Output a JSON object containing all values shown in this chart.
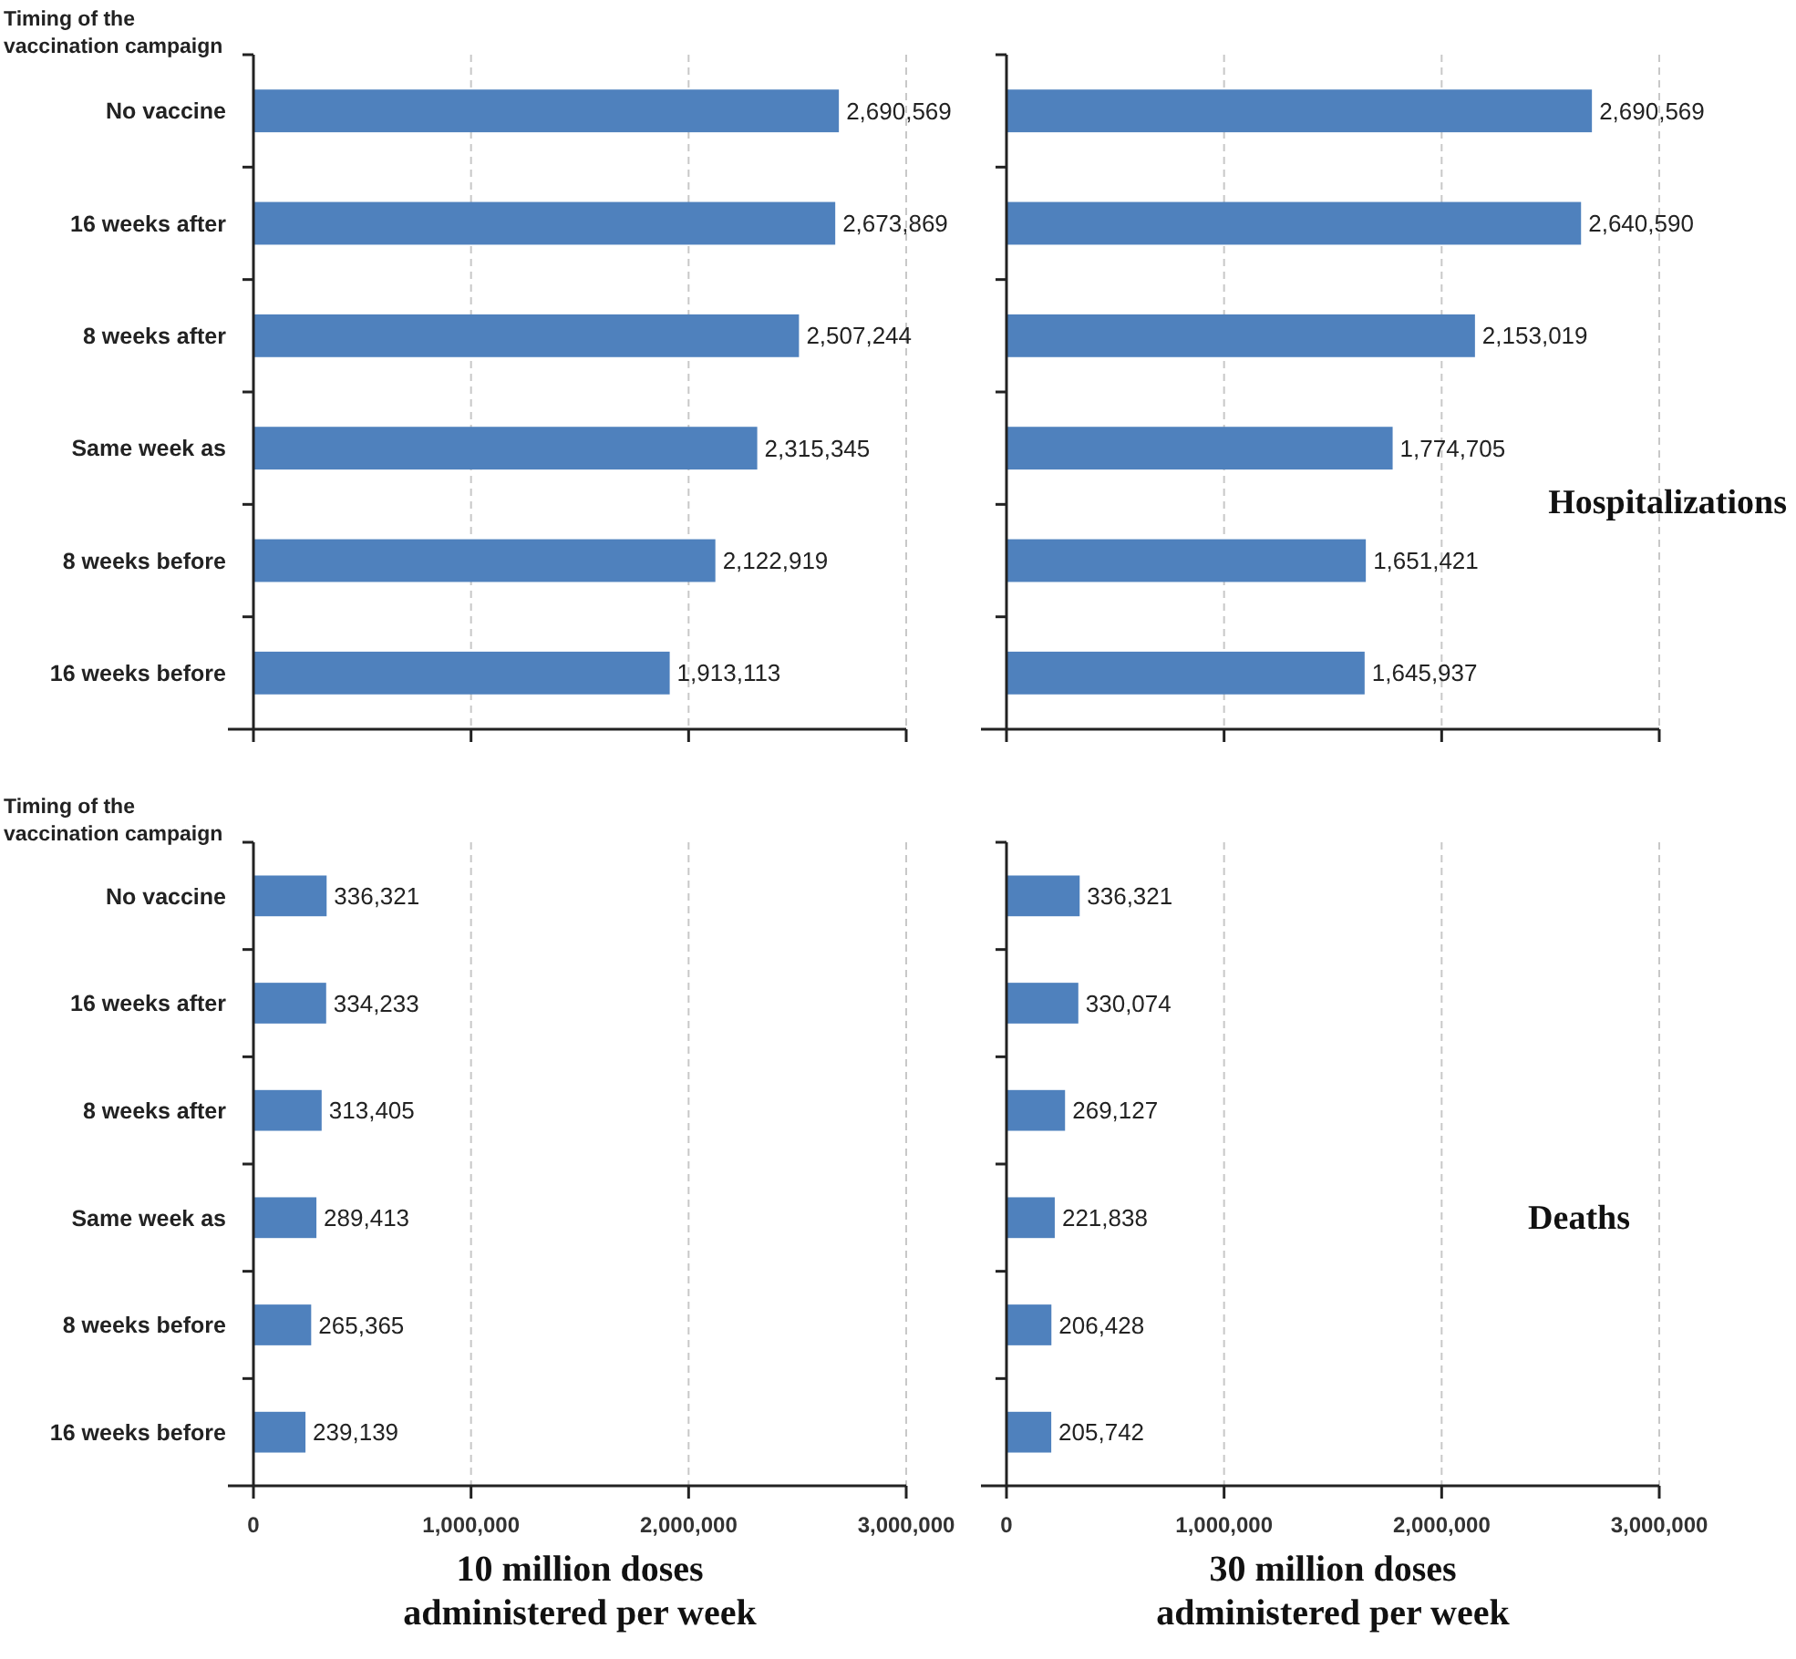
{
  "chart_data": [
    {
      "type": "bar",
      "orientation": "horizontal",
      "ylabel": "Timing of the vaccination campaign",
      "categories": [
        "No vaccine",
        "16 weeks after",
        "8 weeks after",
        "Same week as",
        "8 weeks before",
        "16 weeks before"
      ],
      "values": [
        2690569,
        2673869,
        2507244,
        2315345,
        2122919,
        1913113
      ],
      "value_labels": [
        "2,690,569",
        "2,673,869",
        "2,507,244",
        "2,315,345",
        "2,122,919",
        "1,913,113"
      ],
      "color": "#4f81bd",
      "xlim": [
        0,
        3000000
      ],
      "xticks": [
        {
          "value": 0,
          "label": null
        },
        {
          "value": 1000000,
          "label": null
        },
        {
          "value": 2000000,
          "label": null
        },
        {
          "value": 3000000,
          "label": null
        }
      ],
      "grid": "x",
      "tick_labels": "y"
    },
    {
      "type": "bar",
      "orientation": "horizontal",
      "categories": [
        null,
        null,
        null,
        null,
        null,
        null
      ],
      "values": [
        2690569,
        2640590,
        2153019,
        1774705,
        1651421,
        1645937
      ],
      "value_labels": [
        "2,690,569",
        "2,640,590",
        "2,153,019",
        "1,774,705",
        "1,651,421",
        "1,645,937"
      ],
      "color": "#4f81bd",
      "xlim": [
        0,
        3000000
      ],
      "xticks": [
        {
          "value": 0,
          "label": null
        },
        {
          "value": 1000000,
          "label": null
        },
        {
          "value": 2000000,
          "label": null
        },
        {
          "value": 3000000,
          "label": null
        }
      ],
      "grid": "x",
      "tick_labels": false,
      "annotations": [
        "Hospitalizations"
      ]
    },
    {
      "type": "bar",
      "orientation": "horizontal",
      "ylabel": "Timing of the vaccination campaign",
      "xlabel": "10 million doses administered per week",
      "categories": [
        "No vaccine",
        "16 weeks after",
        "8 weeks after",
        "Same week as",
        "8 weeks before",
        "16 weeks before"
      ],
      "values": [
        336321,
        334233,
        313405,
        289413,
        265365,
        239139
      ],
      "value_labels": [
        "336,321",
        "334,233",
        "313,405",
        "289,413",
        "265,365",
        "239,139"
      ],
      "color": "#4f81bd",
      "xlim": [
        0,
        3000000
      ],
      "xticks": [
        {
          "value": 0,
          "label": "0"
        },
        {
          "value": 1000000,
          "label": "1,000,000"
        },
        {
          "value": 2000000,
          "label": "2,000,000"
        },
        {
          "value": 3000000,
          "label": "3,000,000"
        }
      ],
      "grid": "x"
    },
    {
      "type": "bar",
      "orientation": "horizontal",
      "xlabel": "30 million doses administered per week",
      "categories": [
        null,
        null,
        null,
        null,
        null,
        null
      ],
      "values": [
        336321,
        330074,
        269127,
        221838,
        206428,
        205742
      ],
      "value_labels": [
        "336,321",
        "330,074",
        "269,127",
        "221,838",
        "206,428",
        "205,742"
      ],
      "color": "#4f81bd",
      "xlim": [
        0,
        3000000
      ],
      "xticks": [
        {
          "value": 0,
          "label": "0"
        },
        {
          "value": 1000000,
          "label": "1,000,000"
        },
        {
          "value": 2000000,
          "label": "2,000,000"
        },
        {
          "value": 3000000,
          "label": "3,000,000"
        }
      ],
      "grid": "x",
      "tick_labels": "x",
      "annotations": [
        "Deaths"
      ]
    }
  ]
}
